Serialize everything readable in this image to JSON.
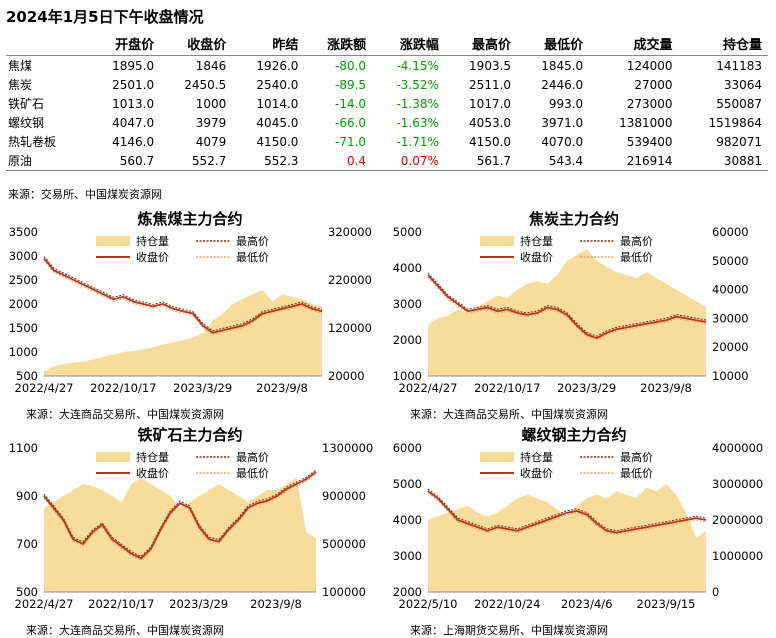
{
  "title": "2024年1月5日下午收盘情况",
  "table": {
    "headers": [
      "",
      "开盘价",
      "收盘价",
      "昨结",
      "涨跌额",
      "涨跌幅",
      "最高价",
      "最低价",
      "成交量",
      "持仓量"
    ],
    "rows": [
      {
        "name": "焦煤",
        "open": "1895.0",
        "close": "1846",
        "prev": "1926.0",
        "chg": "-80.0",
        "pct": "-4.15%",
        "high": "1903.5",
        "low": "1845.0",
        "vol": "124000",
        "oi": "141183",
        "dir": "down"
      },
      {
        "name": "焦炭",
        "open": "2501.0",
        "close": "2450.5",
        "prev": "2540.0",
        "chg": "-89.5",
        "pct": "-3.52%",
        "high": "2511.0",
        "low": "2446.0",
        "vol": "27000",
        "oi": "33064",
        "dir": "down"
      },
      {
        "name": "铁矿石",
        "open": "1013.0",
        "close": "1000",
        "prev": "1014.0",
        "chg": "-14.0",
        "pct": "-1.38%",
        "high": "1017.0",
        "low": "993.0",
        "vol": "273000",
        "oi": "550087",
        "dir": "down"
      },
      {
        "name": "螺纹钢",
        "open": "4047.0",
        "close": "3979",
        "prev": "4045.0",
        "chg": "-66.0",
        "pct": "-1.63%",
        "high": "4053.0",
        "low": "3971.0",
        "vol": "1381000",
        "oi": "1519864",
        "dir": "down"
      },
      {
        "name": "热轧卷板",
        "open": "4146.0",
        "close": "4079",
        "prev": "4150.0",
        "chg": "-71.0",
        "pct": "-1.71%",
        "high": "4150.0",
        "low": "4070.0",
        "vol": "539400",
        "oi": "982071",
        "dir": "down"
      },
      {
        "name": "原油",
        "open": "560.7",
        "close": "552.7",
        "prev": "552.3",
        "chg": "0.4",
        "pct": "0.07%",
        "high": "561.7",
        "low": "543.4",
        "vol": "216914",
        "oi": "30881",
        "dir": "up"
      }
    ],
    "source": "来源：交易所、中国煤炭资源网"
  },
  "legend": {
    "oi": "持仓量",
    "close": "收盘价",
    "high": "最高价",
    "low": "最低价"
  },
  "colors": {
    "oi": "#f7dc9c",
    "close": "#b5361b",
    "high": "#7a2a14",
    "low": "#e8a070"
  },
  "chart_data": [
    {
      "type": "area+line",
      "title": "炼焦煤主力合约",
      "source": "来源：大连商品交易所、中国煤炭资源网",
      "x_ticks": [
        "2022/4/27",
        "2022/10/17",
        "2023/3/29",
        "2023/9/8"
      ],
      "y_left": {
        "range": [
          500,
          3500
        ],
        "ticks": [
          500,
          1000,
          1500,
          2000,
          2500,
          3000,
          3500
        ]
      },
      "y_right": {
        "range": [
          20000,
          320000
        ],
        "ticks": [
          20000,
          120000,
          220000,
          320000
        ]
      },
      "close_series": [
        2950,
        2700,
        2600,
        2500,
        2400,
        2300,
        2200,
        2100,
        2150,
        2050,
        2000,
        1950,
        2000,
        1900,
        1850,
        1800,
        1550,
        1400,
        1450,
        1500,
        1550,
        1650,
        1800,
        1850,
        1900,
        1950,
        2000,
        1900,
        1850
      ],
      "oi_series": [
        30000,
        40000,
        45000,
        48000,
        50000,
        55000,
        60000,
        65000,
        70000,
        72000,
        75000,
        80000,
        85000,
        90000,
        95000,
        100000,
        110000,
        135000,
        150000,
        170000,
        180000,
        190000,
        200000,
        175000,
        190000,
        185000,
        180000,
        170000,
        165000
      ]
    },
    {
      "type": "area+line",
      "title": "焦炭主力合约",
      "source": "来源：大连商品交易所、中国煤炭资源网",
      "x_ticks": [
        "2022/4/27",
        "2022/10/17",
        "2023/3/29",
        "2023/9/8"
      ],
      "y_left": {
        "range": [
          1000,
          5000
        ],
        "ticks": [
          1000,
          2000,
          3000,
          4000,
          5000
        ]
      },
      "y_right": {
        "range": [
          10000,
          60000
        ],
        "ticks": [
          10000,
          20000,
          30000,
          40000,
          50000,
          60000
        ]
      },
      "close_series": [
        3800,
        3500,
        3200,
        3000,
        2800,
        2850,
        2900,
        2800,
        2850,
        2750,
        2700,
        2750,
        2900,
        2850,
        2700,
        2400,
        2150,
        2050,
        2200,
        2300,
        2350,
        2400,
        2450,
        2500,
        2550,
        2650,
        2600,
        2550,
        2500
      ],
      "oi_series": [
        28000,
        30000,
        31000,
        33000,
        32000,
        34000,
        36000,
        38000,
        37000,
        40000,
        42000,
        43000,
        42000,
        45000,
        50000,
        52000,
        54000,
        50000,
        48000,
        46000,
        45000,
        44000,
        46000,
        44000,
        42000,
        40000,
        38000,
        36000,
        34000
      ]
    },
    {
      "type": "area+line",
      "title": "铁矿石主力合约",
      "source": "来源：大连商品交易所、中国煤炭资源网",
      "x_ticks": [
        "2022/4/27",
        "2022/10/17",
        "2023/3/29",
        "2023/9/8"
      ],
      "y_left": {
        "range": [
          500,
          1100
        ],
        "ticks": [
          500,
          700,
          900,
          1100
        ]
      },
      "y_right": {
        "range": [
          100000,
          1300000
        ],
        "ticks": [
          100000,
          500000,
          900000,
          1300000
        ]
      },
      "close_series": [
        900,
        850,
        800,
        720,
        700,
        750,
        780,
        720,
        690,
        660,
        640,
        680,
        760,
        830,
        870,
        850,
        770,
        720,
        710,
        760,
        800,
        850,
        870,
        880,
        900,
        930,
        950,
        970,
        1000
      ],
      "oi_series": [
        800000,
        850000,
        900000,
        950000,
        1000000,
        980000,
        950000,
        900000,
        850000,
        1000000,
        1050000,
        1000000,
        950000,
        900000,
        800000,
        850000,
        900000,
        950000,
        1000000,
        950000,
        900000,
        850000,
        900000,
        950000,
        950000,
        1000000,
        1050000,
        600000,
        550000
      ]
    },
    {
      "type": "area+line",
      "title": "螺纹钢主力合约",
      "source": "来源：上海期货交易所、中国煤炭资源网",
      "x_ticks": [
        "2022/5/10",
        "2022/10/24",
        "2023/4/6",
        "2023/9/15"
      ],
      "y_left": {
        "range": [
          2000,
          6000
        ],
        "ticks": [
          2000,
          3000,
          4000,
          5000,
          6000
        ]
      },
      "y_right": {
        "range": [
          0,
          4000000
        ],
        "ticks": [
          0,
          1000000,
          2000000,
          3000000,
          4000000
        ]
      },
      "close_series": [
        4800,
        4600,
        4300,
        4000,
        3900,
        3800,
        3700,
        3800,
        3750,
        3700,
        3800,
        3900,
        4000,
        4100,
        4200,
        4250,
        4150,
        3900,
        3700,
        3650,
        3700,
        3750,
        3800,
        3850,
        3900,
        3950,
        4000,
        4050,
        4000
      ],
      "oi_series": [
        2000000,
        2100000,
        2200000,
        2300000,
        2400000,
        2200000,
        2100000,
        2200000,
        2400000,
        2600000,
        2700000,
        2600000,
        2500000,
        2300000,
        2100000,
        2400000,
        2600000,
        2700000,
        2600000,
        2800000,
        2700000,
        2600000,
        2900000,
        2800000,
        3000000,
        2700000,
        2200000,
        1500000,
        1700000
      ]
    }
  ]
}
